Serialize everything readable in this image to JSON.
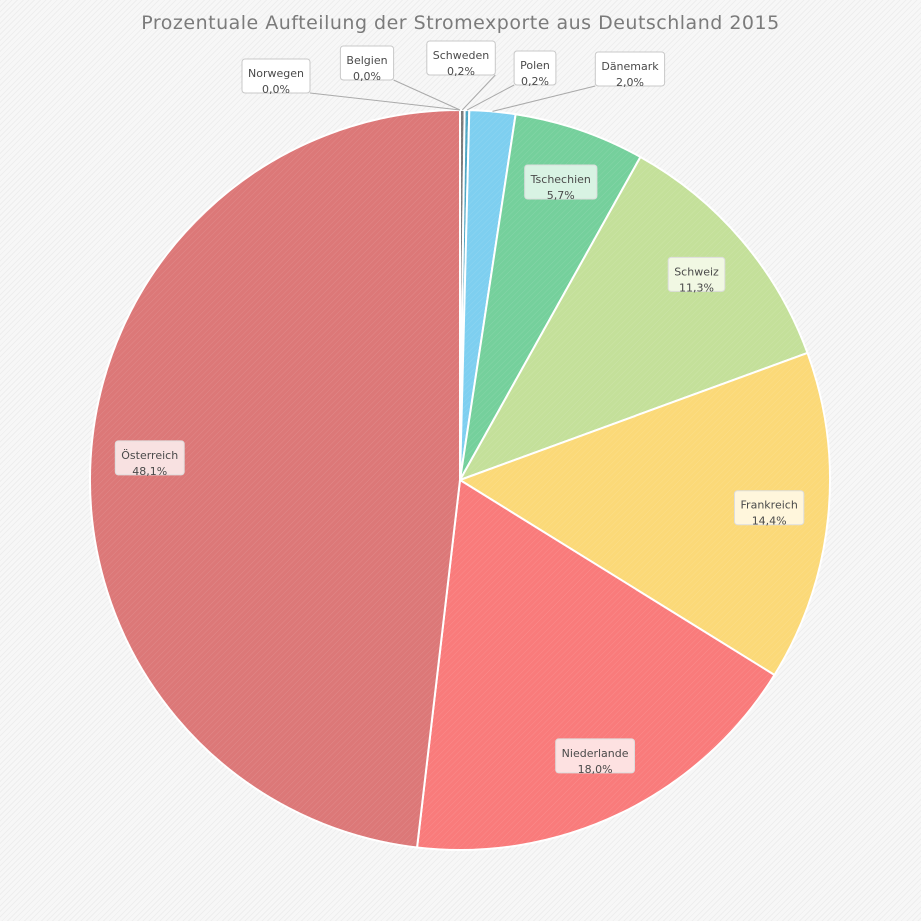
{
  "chart_data": {
    "type": "pie",
    "title": "Prozentuale Aufteilung der Stromexporte aus Deutschland 2015",
    "slices": [
      {
        "label": "Norwegen",
        "value": 0.0,
        "display": "0,0%",
        "color": "#cccccc",
        "label_bg": "#ffffff"
      },
      {
        "label": "Belgien",
        "value": 0.0,
        "display": "0,0%",
        "color": "#bbbbbb",
        "label_bg": "#ffffff"
      },
      {
        "label": "Schweden",
        "value": 0.2,
        "display": "0,2%",
        "color": "#7b7b7b",
        "label_bg": "#ffffff"
      },
      {
        "label": "Polen",
        "value": 0.2,
        "display": "0,2%",
        "color": "#4da6c4",
        "label_bg": "#ffffff"
      },
      {
        "label": "Dänemark",
        "value": 2.0,
        "display": "2,0%",
        "color": "#7ecff0",
        "label_bg": "#ffffff"
      },
      {
        "label": "Tschechien",
        "value": 5.7,
        "display": "5,7%",
        "color": "#75d09c",
        "label_bg": "#d8f3e3"
      },
      {
        "label": "Schweiz",
        "value": 11.3,
        "display": "11,3%",
        "color": "#c4e09a",
        "label_bg": "#f1f8e3"
      },
      {
        "label": "Frankreich",
        "value": 14.4,
        "display": "14,4%",
        "color": "#fbd978",
        "label_bg": "#fff6dc"
      },
      {
        "label": "Niederlande",
        "value": 18.0,
        "display": "18,0%",
        "color": "#f97b7b",
        "label_bg": "#fde1e1"
      },
      {
        "label": "Österreich",
        "value": 48.1,
        "display": "48,1%",
        "color": "#dc7878",
        "label_bg": "#f8e1e1"
      }
    ],
    "start_angle_deg": 0,
    "direction": "clockwise",
    "legend": "none"
  }
}
